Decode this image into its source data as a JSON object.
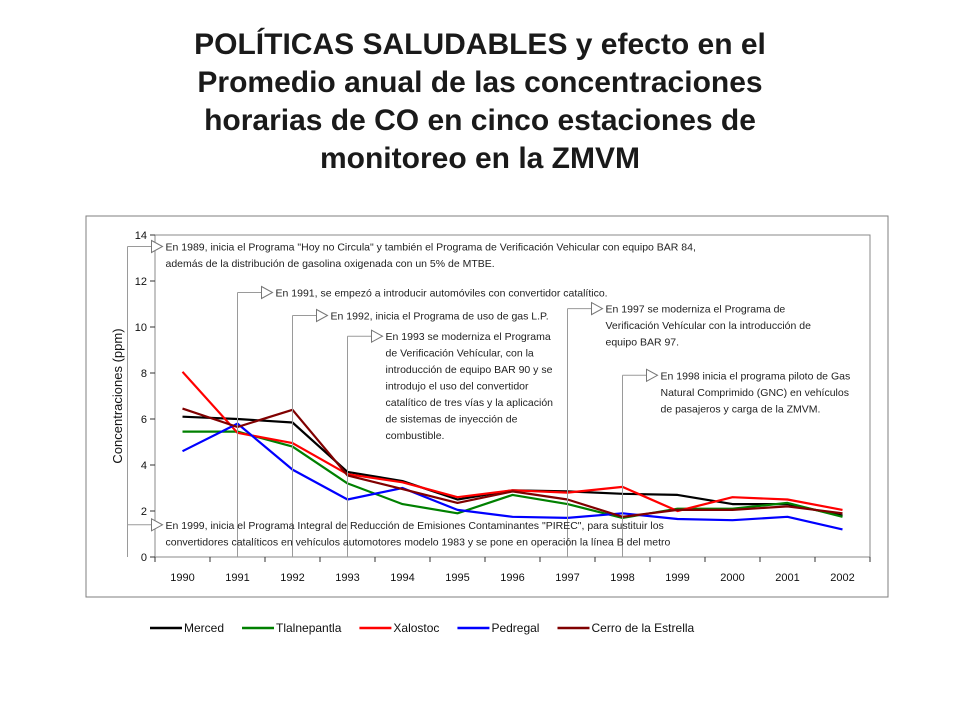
{
  "title_lines": [
    "POLÍTICAS SALUDABLES y efecto en el",
    "Promedio anual de las concentraciones",
    "horarias de CO en cinco estaciones de",
    "monitoreo en la ZMVM"
  ],
  "chart_data": {
    "type": "line",
    "title": "",
    "xlabel": "",
    "ylabel": "Concentraciones (ppm)",
    "ylim": [
      0,
      14
    ],
    "yticks": [
      0,
      2,
      4,
      6,
      8,
      10,
      12,
      14
    ],
    "categories": [
      "1990",
      "1991",
      "1992",
      "1993",
      "1994",
      "1995",
      "1996",
      "1997",
      "1998",
      "1999",
      "2000",
      "2001",
      "2002"
    ],
    "grid": false,
    "legend_position": "bottom",
    "series": [
      {
        "name": "Merced",
        "color": "#000000",
        "values": [
          6.1,
          6.0,
          5.85,
          3.7,
          3.3,
          2.5,
          2.9,
          2.85,
          2.75,
          2.7,
          2.3,
          2.3,
          1.8
        ]
      },
      {
        "name": "Tlalnepantla",
        "color": "#008000",
        "values": [
          5.45,
          5.45,
          4.8,
          3.2,
          2.3,
          1.9,
          2.7,
          2.3,
          1.7,
          2.1,
          2.1,
          2.35,
          1.75
        ]
      },
      {
        "name": "Xalostoc",
        "color": "#ff0000",
        "values": [
          8.05,
          5.4,
          4.95,
          3.6,
          3.25,
          2.6,
          2.9,
          2.8,
          3.05,
          2.0,
          2.6,
          2.5,
          2.05
        ]
      },
      {
        "name": "Pedregal",
        "color": "#0000ff",
        "values": [
          4.6,
          5.8,
          3.8,
          2.5,
          3.0,
          2.05,
          1.75,
          1.7,
          1.9,
          1.65,
          1.6,
          1.75,
          1.2
        ]
      },
      {
        "name": "Cerro de la Estrella",
        "color": "#800000",
        "values": [
          6.45,
          5.65,
          6.4,
          3.55,
          2.95,
          2.35,
          2.85,
          2.5,
          1.75,
          2.05,
          2.05,
          2.2,
          1.9
        ]
      }
    ],
    "annotations": [
      {
        "category": "1989",
        "y": 13.5,
        "lines": [
          "En 1989, inicia el Programa \"Hoy no Circula\" y también el Programa de Verificación Vehicular con equipo BAR 84,",
          "además de la distribución de gasolina oxigenada con un 5% de MTBE."
        ]
      },
      {
        "category": "1991",
        "y": 11.5,
        "lines": [
          "En 1991, se empezó a introducir automóviles con convertidor catalítico."
        ]
      },
      {
        "category": "1992",
        "y": 10.5,
        "lines": [
          "En 1992, inicia el Programa de uso de gas L.P."
        ]
      },
      {
        "category": "1993",
        "y": 9.6,
        "lines": [
          "En 1993 se moderniza el Programa",
          "de Verificación Vehícular, con la",
          "introducción de equipo BAR 90 y se",
          "introdujo el uso del convertidor",
          "catalítico de tres vías y la aplicación",
          "de sistemas de inyección de",
          "combustible."
        ]
      },
      {
        "category": "1997",
        "y": 10.8,
        "lines": [
          "En 1997 se moderniza el Programa de",
          "Verificación Vehícular con la introducción de",
          "equipo BAR 97."
        ]
      },
      {
        "category": "1998",
        "y": 7.9,
        "lines": [
          "En 1998 inicia el programa piloto de Gas",
          "Natural Comprimido (GNC) en vehículos",
          "de pasajeros y carga de la ZMVM."
        ]
      },
      {
        "category": "1989",
        "y": 1.4,
        "lines": [
          "En 1999, inicia el Programa Integral de Reducción de Emisiones Contaminantes \"PIREC\", para sustituir los",
          "convertidores catalíticos en vehículos automotores modelo 1983 y se pone en operación la línea B del metro"
        ]
      }
    ]
  }
}
